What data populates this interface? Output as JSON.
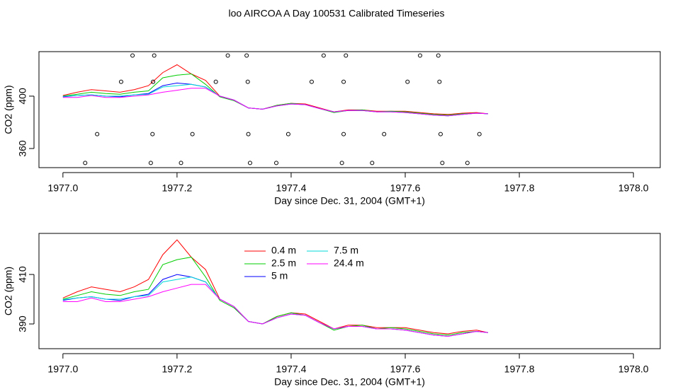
{
  "title": "loo AIRCOA A  Day 100531  Calibrated Timeseries",
  "chart_data": [
    {
      "type": "line",
      "xlabel": "Day since Dec. 31, 2004 (GMT+1)",
      "ylabel": "CO2 (ppm)",
      "xlim": [
        1976.958,
        1978.047
      ],
      "ylim": [
        345.4,
        434
      ],
      "xticks": [
        {
          "value": 1977.0,
          "label": "1977.0"
        },
        {
          "value": 1977.2,
          "label": "1977.2"
        },
        {
          "value": 1977.4,
          "label": "1977.4"
        },
        {
          "value": 1977.6,
          "label": "1977.6"
        },
        {
          "value": 1977.8,
          "label": "1977.8"
        },
        {
          "value": 1978.0,
          "label": "1978.0"
        }
      ],
      "yticks": [
        360,
        400
      ],
      "x": [
        1977.0,
        1977.025,
        1977.05,
        1977.075,
        1977.1,
        1977.125,
        1977.15,
        1977.175,
        1977.2,
        1977.225,
        1977.25,
        1977.275,
        1977.3,
        1977.325,
        1977.35,
        1977.375,
        1977.4,
        1977.425,
        1977.45,
        1977.475,
        1977.5,
        1977.525,
        1977.55,
        1977.575,
        1977.6,
        1977.625,
        1977.65,
        1977.675,
        1977.7,
        1977.725,
        1977.745
      ],
      "series": [
        {
          "color": "#ff0000",
          "values": [
            400.5,
            403,
            405,
            404,
            403,
            405,
            408,
            418,
            424,
            417,
            412,
            400,
            397,
            391,
            390,
            393,
            394.5,
            394,
            391,
            388,
            389.5,
            389.5,
            388.5,
            388.5,
            388.5,
            387.5,
            386.5,
            386,
            387,
            387.5,
            386.5
          ]
        },
        {
          "color": "#00cd00",
          "values": [
            400,
            401.5,
            403,
            402,
            401.5,
            403,
            404,
            414,
            416,
            417,
            409,
            399.5,
            396.5,
            391,
            390,
            393,
            394.5,
            393.5,
            390.5,
            387.5,
            389,
            389.5,
            388,
            388.5,
            388,
            387,
            386,
            385.5,
            386.5,
            387,
            386.5
          ]
        },
        {
          "color": "#0000ff",
          "values": [
            399.5,
            400.5,
            401,
            400,
            399.5,
            401,
            402,
            408,
            410,
            409,
            407,
            400,
            397,
            391,
            390,
            392.5,
            394,
            393.5,
            390.5,
            388,
            389,
            389,
            388,
            388,
            387.5,
            386.5,
            385.5,
            385,
            386,
            387,
            386.5
          ]
        },
        {
          "color": "#00d8d8",
          "values": [
            399.8,
            400.5,
            401,
            400,
            400,
            401,
            401.5,
            407,
            408,
            409,
            407,
            400,
            397,
            391,
            390,
            392.5,
            394,
            393.5,
            390.5,
            388,
            389,
            389,
            388,
            388,
            387.5,
            386.5,
            385.5,
            385,
            386,
            387,
            386.5
          ]
        },
        {
          "color": "#ff00ff",
          "values": [
            399,
            399,
            400.5,
            399,
            399,
            400,
            401,
            403,
            404.5,
            406,
            406,
            400,
            397,
            391,
            390,
            392.5,
            394,
            393.5,
            390.5,
            388,
            389,
            389,
            388,
            388,
            387.5,
            386.5,
            385.5,
            385,
            386,
            387,
            386.5
          ]
        }
      ],
      "points": {
        "color": "#000000",
        "x": [
          1977.122,
          1977.16,
          1977.289,
          1977.322,
          1977.457,
          1977.496,
          1977.626,
          1977.658,
          1977.102,
          1977.158,
          1977.268,
          1977.324,
          1977.436,
          1977.492,
          1977.604,
          1977.66,
          1977.06,
          1977.157,
          1977.227,
          1977.325,
          1977.395,
          1977.492,
          1977.563,
          1977.662,
          1977.73,
          1977.039,
          1977.154,
          1977.207,
          1977.328,
          1977.374,
          1977.489,
          1977.542,
          1977.665,
          1977.709
        ],
        "values": [
          431,
          431,
          431,
          431,
          431,
          431,
          431,
          431,
          411,
          411,
          411,
          411,
          411,
          411,
          411,
          411,
          371,
          371,
          371,
          371,
          371,
          371,
          371,
          371,
          371,
          349,
          349,
          349,
          349,
          349,
          349,
          349,
          349,
          349
        ]
      }
    },
    {
      "type": "line",
      "xlabel": "Day since Dec. 31, 2004 (GMT+1)",
      "ylabel": "CO2 (ppm)",
      "xlim": [
        1976.958,
        1978.047
      ],
      "ylim": [
        380,
        426.6
      ],
      "xticks": [
        {
          "value": 1977.0,
          "label": "1977.0"
        },
        {
          "value": 1977.2,
          "label": "1977.2"
        },
        {
          "value": 1977.4,
          "label": "1977.4"
        },
        {
          "value": 1977.6,
          "label": "1977.6"
        },
        {
          "value": 1977.8,
          "label": "1977.8"
        },
        {
          "value": 1978.0,
          "label": "1978.0"
        }
      ],
      "yticks": [
        390,
        410
      ],
      "legend": "top",
      "x": [
        1977.0,
        1977.025,
        1977.05,
        1977.075,
        1977.1,
        1977.125,
        1977.15,
        1977.175,
        1977.2,
        1977.225,
        1977.25,
        1977.275,
        1977.3,
        1977.325,
        1977.35,
        1977.375,
        1977.4,
        1977.425,
        1977.45,
        1977.475,
        1977.5,
        1977.525,
        1977.55,
        1977.575,
        1977.6,
        1977.625,
        1977.65,
        1977.675,
        1977.7,
        1977.725,
        1977.745
      ],
      "series": [
        {
          "name": "0.4 m",
          "color": "#ff0000",
          "values": [
            400.5,
            403,
            405,
            404,
            403,
            405,
            408,
            418,
            424,
            417,
            412,
            400,
            397,
            391,
            390,
            393,
            394.5,
            394,
            391,
            388,
            389.5,
            389.5,
            388.5,
            388.5,
            388.5,
            387.5,
            386.5,
            386,
            387,
            387.5,
            386.5
          ]
        },
        {
          "name": "2.5 m",
          "color": "#00cd00",
          "values": [
            400,
            401.5,
            403,
            402,
            401.5,
            403,
            404,
            414,
            416,
            417,
            409,
            399.5,
            396.5,
            391,
            390,
            393,
            394.5,
            393.5,
            390.5,
            387.5,
            389,
            389.5,
            388,
            388.5,
            388,
            387,
            386,
            385.5,
            386.5,
            387,
            386.5
          ]
        },
        {
          "name": "5 m",
          "color": "#0000ff",
          "values": [
            399.5,
            400.5,
            401,
            400,
            399.5,
            401,
            402,
            408,
            410,
            409,
            407,
            400,
            397,
            391,
            390,
            392.5,
            394,
            393.5,
            390.5,
            388,
            389,
            389,
            388,
            388,
            387.5,
            386.5,
            385.5,
            385,
            386,
            387,
            386.5
          ]
        },
        {
          "name": "7.5 m",
          "color": "#00d8d8",
          "values": [
            399.8,
            400.5,
            401,
            400,
            400,
            401,
            401.5,
            407,
            408,
            409,
            407,
            400,
            397,
            391,
            390,
            392.5,
            394,
            393.5,
            390.5,
            388,
            389,
            389,
            388,
            388,
            387.5,
            386.5,
            385.5,
            385,
            386,
            387,
            386.5
          ]
        },
        {
          "name": "24.4 m",
          "color": "#ff00ff",
          "values": [
            399,
            399,
            400.5,
            399,
            399,
            400,
            401,
            403,
            404.5,
            406,
            406,
            400,
            397,
            391,
            390,
            392.5,
            394,
            393.5,
            390.5,
            388,
            389,
            389,
            388,
            388,
            387.5,
            386.5,
            385.5,
            385,
            386,
            387,
            386.5
          ]
        }
      ]
    }
  ]
}
